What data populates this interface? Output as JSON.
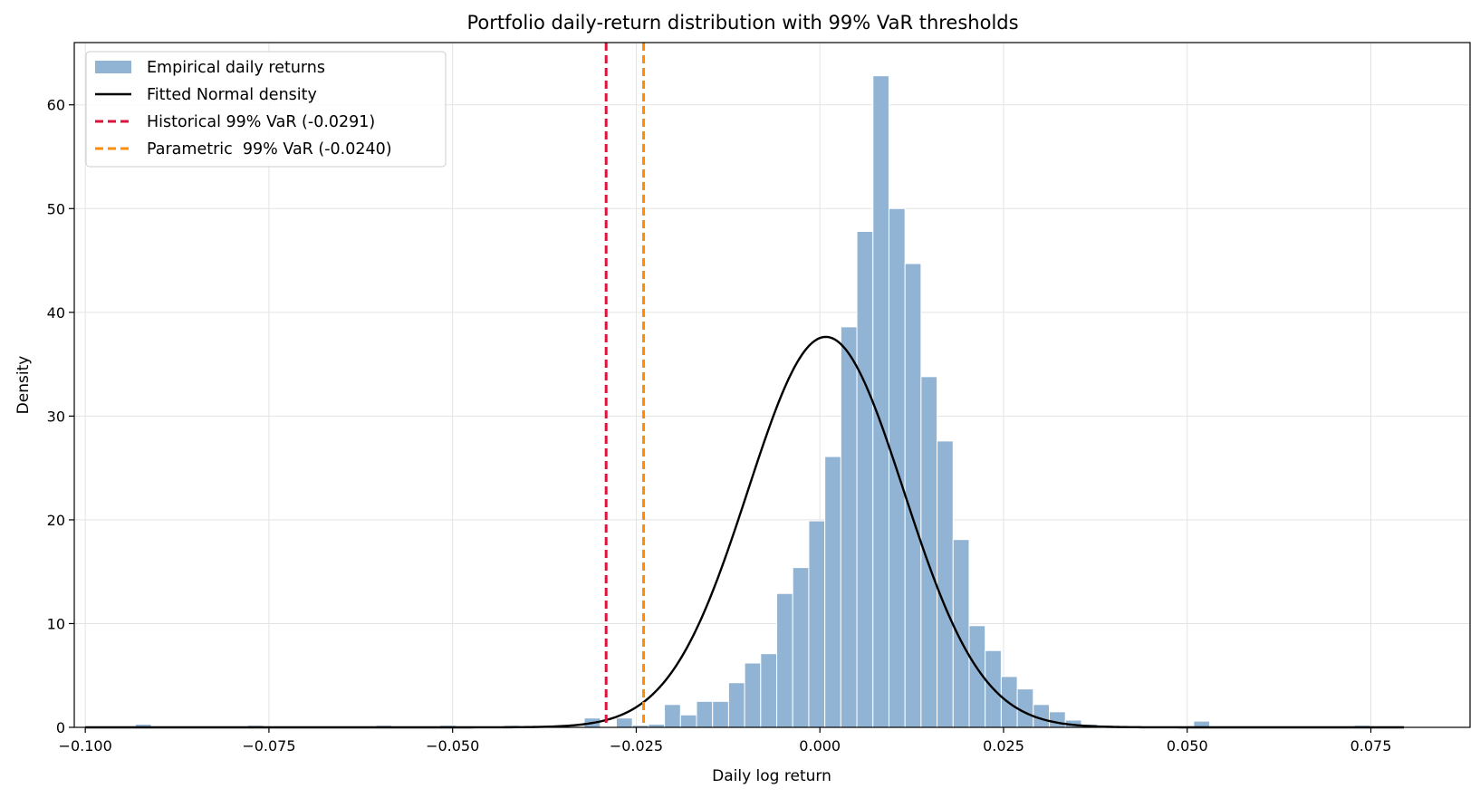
{
  "chart_data": {
    "type": "bar",
    "title": "Portfolio daily-return distribution with 99% VaR thresholds",
    "xlabel": "Daily log return",
    "ylabel": "Density",
    "xlim": [
      -0.1015,
      0.0885
    ],
    "ylim": [
      0,
      66
    ],
    "x_ticks": [
      -0.1,
      -0.075,
      -0.05,
      -0.025,
      0.0,
      0.025,
      0.05,
      0.075
    ],
    "x_tick_labels": [
      "−0.100",
      "−0.075",
      "−0.050",
      "−0.025",
      "0.000",
      "0.025",
      "0.050",
      "0.075"
    ],
    "y_ticks": [
      0,
      10,
      20,
      30,
      40,
      50,
      60
    ],
    "y_tick_labels": [
      "0",
      "10",
      "20",
      "30",
      "40",
      "50",
      "60"
    ],
    "grid": true,
    "legend_position": "top-left",
    "histogram": {
      "name": "Empirical daily returns",
      "color": "#92b4d4",
      "edge_color": "#ffffff",
      "bin_start": -0.0932,
      "bin_width": 0.002183,
      "values": [
        0.3,
        0,
        0,
        0,
        0,
        0,
        0,
        0.2,
        0,
        0,
        0,
        0,
        0,
        0,
        0,
        0.2,
        0,
        0,
        0,
        0.2,
        0,
        0,
        0,
        0.2,
        0,
        0,
        0,
        0,
        0.9,
        0,
        0.9,
        0.2,
        0.3,
        2.2,
        1.2,
        2.5,
        2.5,
        4.3,
        6.2,
        7.1,
        12.9,
        15.4,
        19.9,
        26.1,
        38.6,
        47.8,
        62.8,
        50.0,
        44.7,
        33.8,
        27.6,
        18.1,
        9.8,
        7.4,
        4.9,
        3.7,
        2.2,
        1.5,
        0.7,
        0.3,
        0.2,
        0,
        0,
        0,
        0,
        0,
        0.6,
        0,
        0,
        0,
        0,
        0,
        0,
        0,
        0,
        0,
        0.2,
        0,
        0,
        0,
        0,
        0,
        0,
        0,
        0,
        0,
        0,
        0,
        0,
        0.2,
        0,
        0,
        0.2
      ]
    },
    "normal_fit": {
      "name": "Fitted Normal density",
      "color": "#000000",
      "mean": 0.0008,
      "std": 0.0106
    },
    "lines": [
      {
        "name": "Historical 99% VaR (-0.0291)",
        "x": -0.0291,
        "color": "#dc143c",
        "style": "dashed"
      },
      {
        "name": "Parametric  99% VaR (-0.0240)",
        "x": -0.024,
        "color": "#ff8c00",
        "style": "dashed"
      }
    ]
  }
}
